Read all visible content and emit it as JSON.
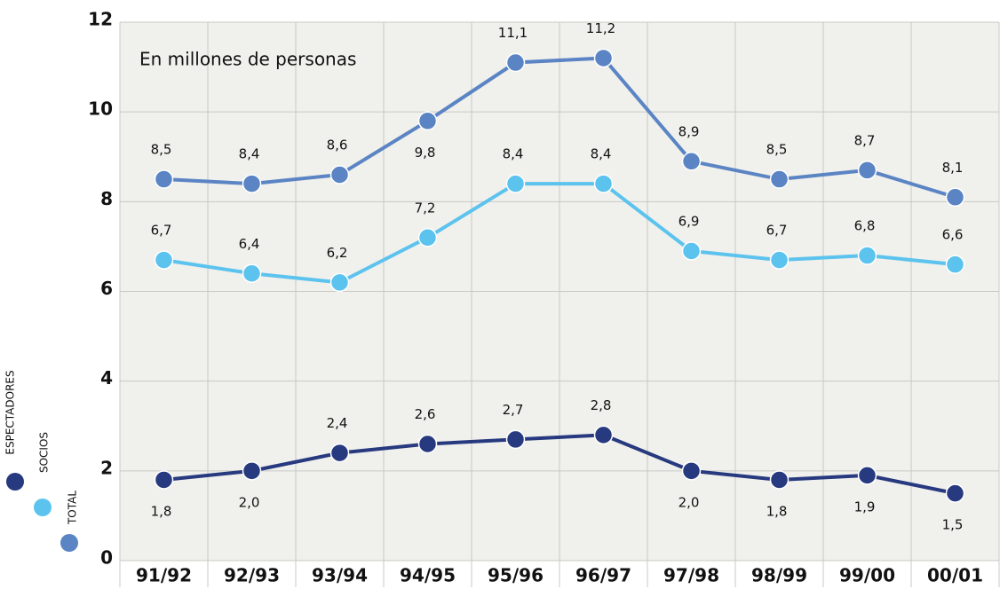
{
  "chart_data": {
    "type": "line",
    "annotation": "En millones de personas",
    "categories": [
      "91/92",
      "92/93",
      "93/94",
      "94/95",
      "95/96",
      "96/97",
      "97/98",
      "98/99",
      "99/00",
      "00/01"
    ],
    "series": [
      {
        "name": "ESPECTADORES",
        "color": "#27397f",
        "values": [
          1.8,
          2.0,
          2.4,
          2.6,
          2.7,
          2.8,
          2.0,
          1.8,
          1.9,
          1.5
        ],
        "value_labels": [
          "1,8",
          "2,0",
          "2,4",
          "2,6",
          "2,7",
          "2,8",
          "2,0",
          "1,8",
          "1,9",
          "1,5"
        ]
      },
      {
        "name": "SOCIOS",
        "color": "#5cc3ee",
        "values": [
          6.7,
          6.4,
          6.2,
          7.2,
          8.4,
          8.4,
          6.9,
          6.7,
          6.8,
          6.6
        ],
        "value_labels": [
          "6,7",
          "6,4",
          "6,2",
          "7,2",
          "8,4",
          "8,4",
          "6,9",
          "6,7",
          "6,8",
          "6,6"
        ]
      },
      {
        "name": "TOTAL",
        "color": "#5b84c4",
        "values": [
          8.5,
          8.4,
          8.6,
          9.8,
          11.1,
          11.2,
          8.9,
          8.5,
          8.7,
          8.1
        ],
        "value_labels": [
          "8,5",
          "8,4",
          "8,6",
          "9,8",
          "11,1",
          "11,2",
          "8,9",
          "8,5",
          "8,7",
          "8,1"
        ]
      }
    ],
    "ylim": [
      0,
      12
    ],
    "yticks": [
      0,
      2,
      4,
      6,
      8,
      10,
      12
    ],
    "grid": true
  }
}
